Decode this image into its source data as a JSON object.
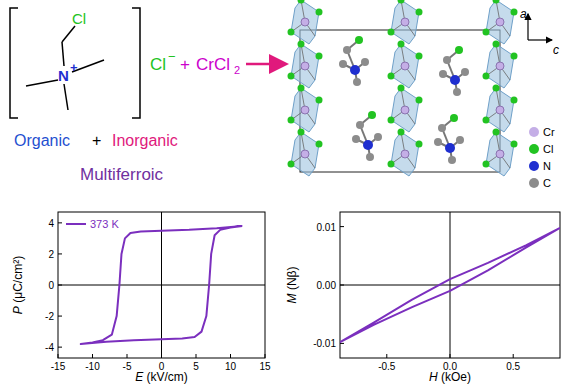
{
  "diagram": {
    "cation": {
      "halogen": "Cl",
      "nitrogen": "N",
      "charge": "+"
    },
    "anion": {
      "label": "Cl",
      "charge": "−"
    },
    "reagent": {
      "plus": "+",
      "label": "CrCl",
      "subscript": "2"
    },
    "captions": {
      "organic": "Organic",
      "plus": "+",
      "inorganic": "Inorganic",
      "title": "Multiferroic"
    },
    "structure": {
      "axes": [
        {
          "label": "a"
        },
        {
          "label": "c"
        }
      ],
      "legend": [
        {
          "label": "Cr",
          "color": "#c4aee6"
        },
        {
          "label": "Cl",
          "color": "#22c322"
        },
        {
          "label": "N",
          "color": "#1f2fd0"
        },
        {
          "label": "C",
          "color": "#8c8c8c"
        }
      ]
    }
  },
  "chart_data": [
    {
      "type": "line",
      "x_label": "E (kV/cm)",
      "y_label": "P (μC/cm²)",
      "xlim": [
        -15,
        15
      ],
      "xticks": [
        -15,
        -10,
        -5,
        0,
        5,
        10,
        15
      ],
      "ylim": [
        -4.7,
        4.7
      ],
      "yticks": [
        -4,
        -2,
        0,
        2,
        4
      ],
      "legend": "upper left",
      "series": [
        {
          "name": "373 K",
          "color": "#7b2fbe",
          "x": [
            11.7,
            8,
            4,
            0,
            -3,
            -4.5,
            -5.3,
            -5.8,
            -6.1,
            -6.5,
            -7.2,
            -8.5,
            -10,
            -11.7,
            -8,
            -4,
            0,
            3,
            4.8,
            5.8,
            6.5,
            6.9,
            7.2,
            7.7,
            8.5,
            10,
            11.7
          ],
          "values": [
            3.8,
            3.65,
            3.55,
            3.5,
            3.45,
            3.35,
            3.0,
            2.0,
            0,
            -2.0,
            -3.2,
            -3.55,
            -3.7,
            -3.8,
            -3.65,
            -3.55,
            -3.5,
            -3.45,
            -3.35,
            -3.0,
            -2.0,
            0,
            2.0,
            3.2,
            3.55,
            3.7,
            3.8
          ]
        }
      ]
    },
    {
      "type": "line",
      "x_label": "H (kOe)",
      "y_label": "M (Nβ)",
      "xlim": [
        -0.87,
        0.87
      ],
      "xticks": [
        -0.5,
        {
          "value": 0,
          "label": "0.0"
        },
        0.5
      ],
      "ylim": [
        -0.0125,
        0.0125
      ],
      "yticks": [
        -0.01,
        {
          "value": 0,
          "label": "0.00"
        },
        0.01
      ],
      "series": [
        {
          "color": "#7b2fbe",
          "x": [
            0.87,
            0.6,
            0.3,
            0,
            -0.3,
            -0.6,
            -0.87,
            -0.6,
            -0.3,
            0,
            0.3,
            0.6,
            0.87
          ],
          "values": [
            0.0098,
            0.0068,
            0.0038,
            0.001,
            -0.0025,
            -0.0064,
            -0.0098,
            -0.0068,
            -0.0038,
            -0.001,
            0.0025,
            0.0064,
            0.0098
          ]
        }
      ]
    }
  ]
}
